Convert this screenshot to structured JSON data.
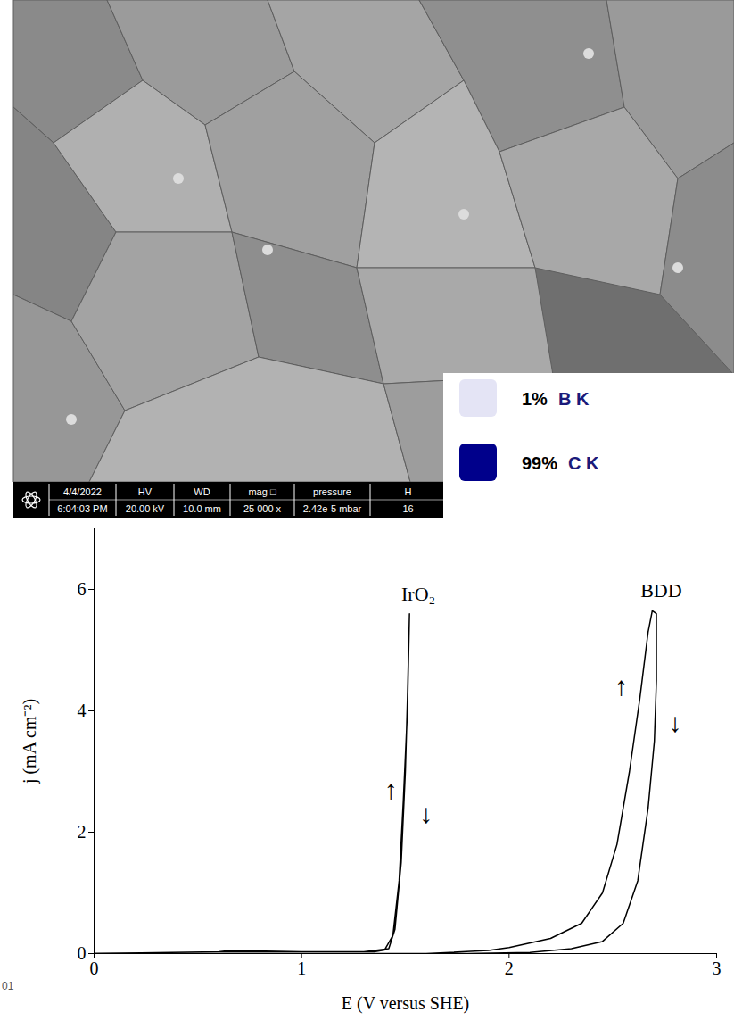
{
  "sem_image": {
    "info_bar": [
      {
        "head": "4/4/2022",
        "value": "6:04:03 PM"
      },
      {
        "head": "HV",
        "value": "20.00 kV"
      },
      {
        "head": "WD",
        "value": "10.0 mm"
      },
      {
        "head": "mag □",
        "value": "25 000 x"
      },
      {
        "head": "pressure",
        "value": "2.42e-5 mbar"
      },
      {
        "head": "H",
        "value": "16"
      }
    ]
  },
  "eds_legend": [
    {
      "label": "1%",
      "element": "B K",
      "color": "#e4e4f5"
    },
    {
      "label": "99%",
      "element": "C K",
      "color": "#00008b"
    }
  ],
  "page_number": "01",
  "chart_data": {
    "type": "line",
    "xlabel": "E (V versus SHE)",
    "ylabel": "j (mA cm⁻²)",
    "xlim": [
      0,
      3
    ],
    "xticks": [
      0,
      1,
      2,
      3
    ],
    "ylim": [
      0,
      7
    ],
    "yticks": [
      0,
      2,
      4,
      6
    ],
    "grid": false,
    "legend": "none",
    "series": [
      {
        "name": "IrO₂",
        "color": "#000000",
        "x": [
          0,
          0.6,
          0.65,
          1.0,
          1.35,
          1.4,
          1.44,
          1.47,
          1.49,
          1.51,
          1.52,
          1.51,
          1.5,
          1.48,
          1.45,
          1.42,
          1.3,
          0.6,
          0
        ],
        "values": [
          0,
          0.03,
          0.05,
          0.03,
          0.03,
          0.06,
          0.3,
          1.2,
          2.5,
          4.0,
          5.6,
          4.2,
          3.0,
          1.5,
          0.4,
          0.08,
          0.03,
          0.03,
          0
        ]
      },
      {
        "name": "BDD",
        "color": "#000000",
        "x": [
          0,
          1.6,
          1.9,
          2.0,
          2.2,
          2.35,
          2.45,
          2.52,
          2.58,
          2.63,
          2.67,
          2.69,
          2.71,
          2.71,
          2.7,
          2.67,
          2.62,
          2.55,
          2.45,
          2.3,
          2.1,
          1.8,
          0
        ],
        "values": [
          0,
          0,
          0.05,
          0.1,
          0.25,
          0.5,
          1.0,
          1.8,
          3.0,
          4.2,
          5.3,
          5.65,
          5.6,
          4.5,
          3.5,
          2.4,
          1.2,
          0.5,
          0.2,
          0.08,
          0.02,
          0,
          0
        ]
      }
    ],
    "annotations": [
      {
        "text": "↑",
        "x": 1.43,
        "y": 2.7
      },
      {
        "text": "↓",
        "x": 1.6,
        "y": 2.3
      },
      {
        "text": "↑",
        "x": 2.54,
        "y": 4.4
      },
      {
        "text": "↓",
        "x": 2.8,
        "y": 3.8
      }
    ]
  }
}
